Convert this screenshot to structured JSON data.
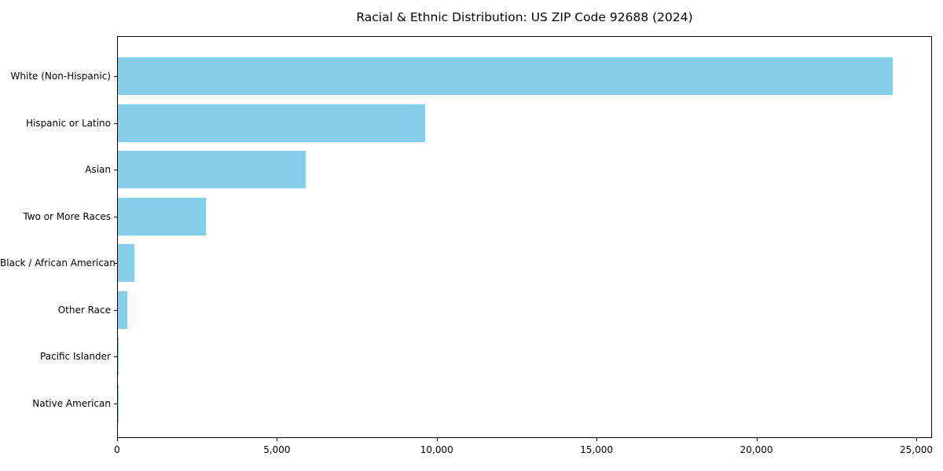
{
  "chart_data": {
    "type": "bar",
    "orientation": "horizontal",
    "title": "Racial & Ethnic Distribution: US ZIP Code 92688 (2024)",
    "xlabel": "",
    "ylabel": "",
    "categories": [
      "White (Non-Hispanic)",
      "Hispanic or Latino",
      "Asian",
      "Two or More Races",
      "Black / African American",
      "Other Race",
      "Pacific Islander",
      "Native American"
    ],
    "values": [
      24240,
      9610,
      5880,
      2750,
      515,
      295,
      35,
      12
    ],
    "xlim": [
      0,
      25492
    ],
    "xtick_values": [
      0,
      5000,
      10000,
      15000,
      20000,
      25000
    ],
    "xtick_labels": [
      "0",
      "5,000",
      "10,000",
      "15,000",
      "20,000",
      "25,000"
    ],
    "bar_color": "#87CEEB",
    "axis_color": "#000000",
    "grid": false,
    "legend": null
  }
}
